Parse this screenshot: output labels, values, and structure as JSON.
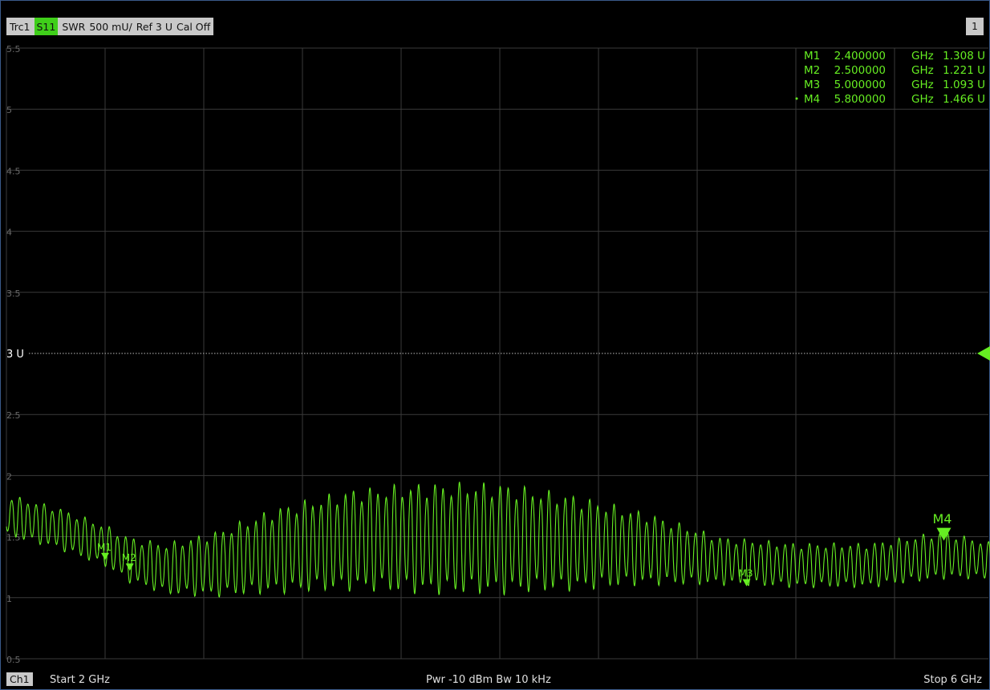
{
  "header": {
    "trace": "Trc1",
    "param": "S11",
    "format": "SWR",
    "scale": "500 mU/",
    "ref": "Ref 3 U",
    "cal": "Cal Off",
    "channel_number": "1"
  },
  "footer": {
    "channel": "Ch1",
    "start": "Start  2 GHz",
    "power_bw": "Pwr  -10 dBm  Bw  10 kHz",
    "stop": "Stop  6 GHz"
  },
  "marker_table": [
    {
      "name": "M1",
      "freq": "2.400000",
      "unit": "GHz",
      "value": "1.308 U"
    },
    {
      "name": "M2",
      "freq": "2.500000",
      "unit": "GHz",
      "value": "1.221 U"
    },
    {
      "name": "M3",
      "freq": "5.000000",
      "unit": "GHz",
      "value": "1.093 U"
    },
    {
      "name": "M4",
      "freq": "5.800000",
      "unit": "GHz",
      "value": "1.466 U"
    }
  ],
  "colors": {
    "trace": "#66ee22",
    "grid": "#3a3a3a",
    "ref_line": "#bbbbbb",
    "text_dim": "#6a6a6a"
  },
  "chart_data": {
    "type": "line",
    "xlim": [
      2,
      6
    ],
    "ylim": [
      0.5,
      5.5
    ],
    "y_ticks": [
      "5.5",
      "5",
      "4.5",
      "4",
      "3.5",
      "3 U",
      "2.5",
      "2",
      "1.5",
      "1",
      "0.5"
    ],
    "ref_value": 3,
    "ref_label": "3 U",
    "grid": true,
    "envelope": {
      "x": [
        2.0,
        2.2,
        2.4,
        2.5,
        2.65,
        2.85,
        3.1,
        3.4,
        3.7,
        4.0,
        4.3,
        4.6,
        4.9,
        5.2,
        5.5,
        5.8,
        6.0
      ],
      "upper": [
        1.85,
        1.75,
        1.6,
        1.5,
        1.45,
        1.55,
        1.75,
        1.9,
        1.95,
        1.95,
        1.85,
        1.7,
        1.5,
        1.45,
        1.45,
        1.55,
        1.45
      ],
      "lower": [
        1.5,
        1.4,
        1.25,
        1.12,
        1.02,
        1.0,
        1.03,
        1.05,
        1.02,
        1.02,
        1.05,
        1.1,
        1.1,
        1.08,
        1.08,
        1.15,
        1.15
      ],
      "ripple_period_ghz": 0.033
    },
    "markers": [
      {
        "name": "M1",
        "x": 2.4,
        "y": 1.308
      },
      {
        "name": "M2",
        "x": 2.5,
        "y": 1.221
      },
      {
        "name": "M3",
        "x": 5.0,
        "y": 1.093
      },
      {
        "name": "M4",
        "x": 5.8,
        "y": 1.466,
        "active": true
      }
    ]
  }
}
